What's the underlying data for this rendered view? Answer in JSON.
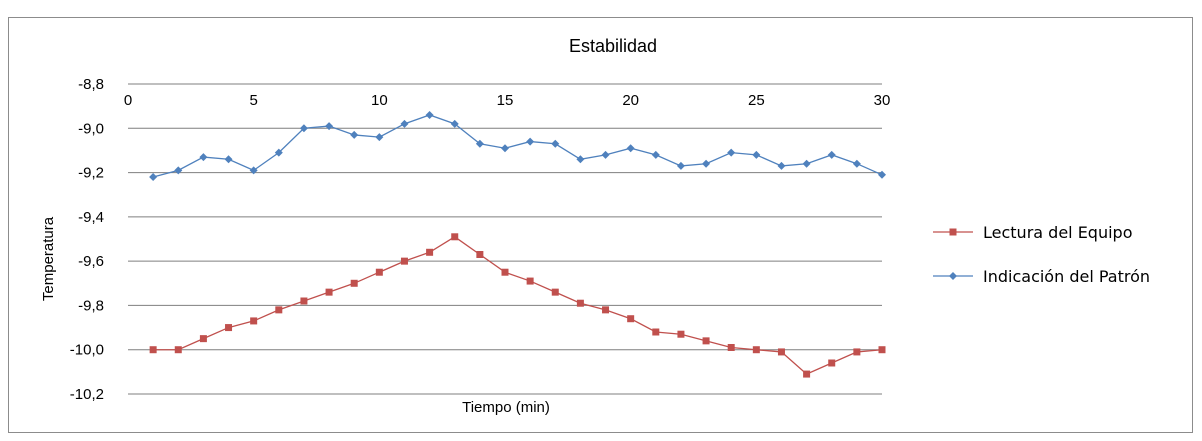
{
  "chart_data": {
    "type": "line",
    "title": "Estabilidad",
    "xlabel": "Tiempo (min)",
    "ylabel": "Temperatura",
    "xlim": [
      0,
      30
    ],
    "ylim": [
      -10.2,
      -8.8
    ],
    "x_ticks": [
      "0",
      "5",
      "10",
      "15",
      "20",
      "25",
      "30"
    ],
    "y_ticks": [
      "-8,8",
      "-9,0",
      "-9,2",
      "-9,4",
      "-9,6",
      "-9,8",
      "-10,0",
      "-10,2"
    ],
    "x_axis_position": "top",
    "grid": true,
    "legend_position": "right",
    "x": [
      1,
      2,
      3,
      4,
      5,
      6,
      7,
      8,
      9,
      10,
      11,
      12,
      13,
      14,
      15,
      16,
      17,
      18,
      19,
      20,
      21,
      22,
      23,
      24,
      25,
      26,
      27,
      28,
      29,
      30
    ],
    "series": [
      {
        "name": "Lectura del Equipo",
        "color": "#c0504d",
        "marker": "square",
        "values": [
          -10.0,
          -10.0,
          -9.95,
          -9.9,
          -9.87,
          -9.82,
          -9.78,
          -9.74,
          -9.7,
          -9.65,
          -9.6,
          -9.56,
          -9.49,
          -9.57,
          -9.65,
          -9.69,
          -9.74,
          -9.79,
          -9.82,
          -9.86,
          -9.92,
          -9.93,
          -9.96,
          -9.99,
          -10.0,
          -10.01,
          -10.11,
          -10.06,
          -10.01,
          -10.0
        ]
      },
      {
        "name": "Indicación del Patrón",
        "color": "#4f81bd",
        "marker": "diamond",
        "values": [
          -9.22,
          -9.19,
          -9.13,
          -9.14,
          -9.19,
          -9.11,
          -9.0,
          -8.99,
          -9.03,
          -9.04,
          -8.98,
          -8.94,
          -8.98,
          -9.07,
          -9.09,
          -9.06,
          -9.07,
          -9.14,
          -9.12,
          -9.09,
          -9.12,
          -9.17,
          -9.16,
          -9.11,
          -9.12,
          -9.17,
          -9.16,
          -9.12,
          -9.16,
          -9.21
        ]
      }
    ]
  }
}
